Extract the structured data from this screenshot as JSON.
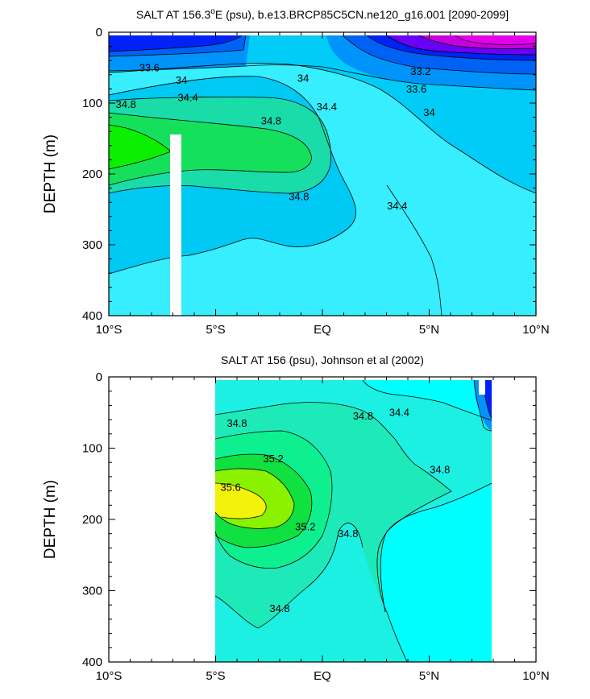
{
  "chart_data": [
    {
      "type": "contour",
      "title": "SALT AT 156.3°E (psu), b.e13.BRCP85C5CN.ne120_g16.001 [2090-2099]",
      "title_main": "SALT AT 156.3",
      "title_sup": "o",
      "title_rest": "E (psu), b.e13.BRCP85C5CN.ne120_g16.001 [2090-2099]",
      "ylabel": "DEPTH (m)",
      "xlabel": "",
      "xlim": [
        -10,
        10
      ],
      "ylim": [
        0,
        400
      ],
      "y_reversed": true,
      "x_ticks": [
        {
          "value": -10,
          "label": "10°S"
        },
        {
          "value": -5,
          "label": "5°S"
        },
        {
          "value": 0,
          "label": "EQ"
        },
        {
          "value": 5,
          "label": "5°N"
        },
        {
          "value": 10,
          "label": "10°N"
        }
      ],
      "y_ticks": [
        {
          "value": 0,
          "label": "0"
        },
        {
          "value": 100,
          "label": "100"
        },
        {
          "value": 200,
          "label": "200"
        },
        {
          "value": 300,
          "label": "300"
        },
        {
          "value": 400,
          "label": "400"
        }
      ],
      "data_extent_x": [
        -10,
        10
      ],
      "data_extent_y": [
        5,
        400
      ],
      "missing_columns": [
        [
          -3.0,
          -2.5,
          145,
          400
        ]
      ],
      "contour_labels": [
        {
          "x": -8.1,
          "y": 55,
          "text": "33.6"
        },
        {
          "x": -6.6,
          "y": 73,
          "text": "34"
        },
        {
          "x": -0.9,
          "y": 70,
          "text": "34"
        },
        {
          "x": 4.6,
          "y": 60,
          "text": "33.2"
        },
        {
          "x": 4.4,
          "y": 85,
          "text": "33.6"
        },
        {
          "x": 5.0,
          "y": 118,
          "text": "34"
        },
        {
          "x": -6.3,
          "y": 97,
          "text": "34.4"
        },
        {
          "x": 0.2,
          "y": 110,
          "text": "34.4"
        },
        {
          "x": -9.2,
          "y": 107,
          "text": "34.8"
        },
        {
          "x": -2.4,
          "y": 130,
          "text": "34.8"
        },
        {
          "x": -1.1,
          "y": 237,
          "text": "34.8"
        },
        {
          "x": 3.5,
          "y": 250,
          "text": "34.4"
        }
      ]
    },
    {
      "type": "contour",
      "title": "SALT AT 156 (psu), Johnson et al (2002)",
      "ylabel": "DEPTH (m)",
      "xlabel": "",
      "xlim": [
        -10,
        10
      ],
      "ylim": [
        0,
        400
      ],
      "y_reversed": true,
      "x_ticks": [
        {
          "value": -10,
          "label": "10°S"
        },
        {
          "value": -5,
          "label": "5°S"
        },
        {
          "value": 0,
          "label": "EQ"
        },
        {
          "value": 5,
          "label": "5°N"
        },
        {
          "value": 10,
          "label": "10°N"
        }
      ],
      "y_ticks": [
        {
          "value": 0,
          "label": "0"
        },
        {
          "value": 100,
          "label": "100"
        },
        {
          "value": 200,
          "label": "200"
        },
        {
          "value": 300,
          "label": "300"
        },
        {
          "value": 400,
          "label": "400"
        }
      ],
      "data_extent_x": [
        -5,
        8
      ],
      "data_extent_y": [
        5,
        400
      ],
      "contour_labels": [
        {
          "x": -4.0,
          "y": 70,
          "text": "34.8"
        },
        {
          "x": -2.3,
          "y": 120,
          "text": "35.2"
        },
        {
          "x": -4.3,
          "y": 160,
          "text": "35.6"
        },
        {
          "x": -0.8,
          "y": 215,
          "text": "35.2"
        },
        {
          "x": 1.2,
          "y": 225,
          "text": "34.8"
        },
        {
          "x": -2.0,
          "y": 330,
          "text": "34.8"
        },
        {
          "x": 1.9,
          "y": 60,
          "text": "34.8"
        },
        {
          "x": 3.6,
          "y": 55,
          "text": "34.4"
        },
        {
          "x": 5.5,
          "y": 135,
          "text": "34.8"
        }
      ]
    }
  ]
}
